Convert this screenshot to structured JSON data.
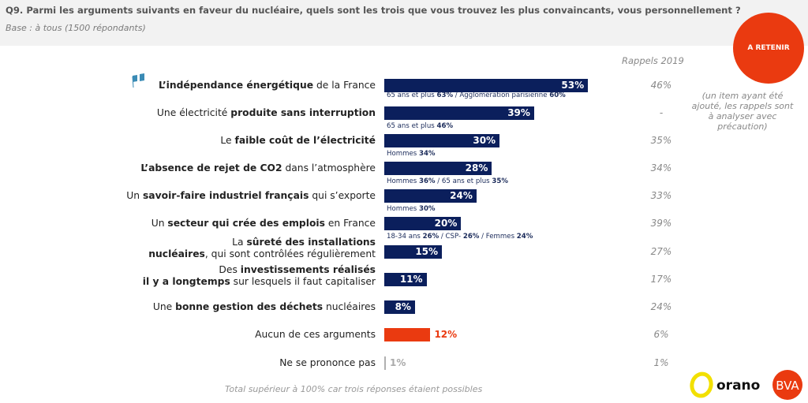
{
  "header": {
    "title": "Q9. Parmi les arguments suivants en faveur du nucléaire, quels sont les trois que vous trouvez les plus convaincants, vous personnellement ?",
    "base": "Base : à tous (1500 répondants)"
  },
  "badge": "A RETENIR",
  "rappels_header": "Rappels 2019",
  "rappels_note": "(un item ayant été ajouté, les rappels sont à analyser avec précaution)",
  "footer": "Total supérieur à 100% car trois réponses étaient possibles",
  "logos": {
    "orano": "orano",
    "bva": "BVA"
  },
  "colors": {
    "navy": "#0b1f5c",
    "red": "#ea3a10",
    "grey": "#b0b0b0"
  },
  "chart_data": {
    "type": "bar",
    "orientation": "horizontal",
    "title": "Q9. Parmi les arguments suivants en faveur du nucléaire, quels sont les trois que vous trouvez les plus convaincants, vous personnellement ?",
    "xlim": [
      0,
      100
    ],
    "unit": "%",
    "rows": [
      {
        "parts": [
          {
            "t": "L’indépendance énergétique",
            "b": true
          },
          {
            "t": " de la France",
            "b": false
          }
        ],
        "value": 53,
        "label": "53%",
        "color": "navy",
        "rappel": "46%",
        "sub": [
          {
            "t": "65 ans et plus ",
            "b": false
          },
          {
            "t": "63%",
            "b": true
          },
          {
            "t": " / Agglomération parisienne ",
            "b": false
          },
          {
            "t": "60%",
            "b": true
          }
        ]
      },
      {
        "parts": [
          {
            "t": "Une électricité ",
            "b": false
          },
          {
            "t": "produite sans interruption",
            "b": true
          }
        ],
        "value": 39,
        "label": "39%",
        "color": "navy",
        "rappel": "-",
        "sub": [
          {
            "t": "65 ans et plus ",
            "b": false
          },
          {
            "t": "46%",
            "b": true
          }
        ]
      },
      {
        "parts": [
          {
            "t": "Le ",
            "b": false
          },
          {
            "t": "faible coût de l’électricité",
            "b": true
          }
        ],
        "value": 30,
        "label": "30%",
        "color": "navy",
        "rappel": "35%",
        "sub": [
          {
            "t": "Hommes ",
            "b": false
          },
          {
            "t": "34%",
            "b": true
          }
        ]
      },
      {
        "parts": [
          {
            "t": "L’absence de rejet de CO2",
            "b": true
          },
          {
            "t": " dans l’atmosphère",
            "b": false
          }
        ],
        "value": 28,
        "label": "28%",
        "color": "navy",
        "rappel": "34%",
        "sub": [
          {
            "t": "Hommes ",
            "b": false
          },
          {
            "t": "36%",
            "b": true
          },
          {
            "t": " / 65 ans et plus ",
            "b": false
          },
          {
            "t": "35%",
            "b": true
          }
        ]
      },
      {
        "parts": [
          {
            "t": "Un ",
            "b": false
          },
          {
            "t": "savoir-faire industriel français",
            "b": true
          },
          {
            "t": " qui s’exporte",
            "b": false
          }
        ],
        "value": 24,
        "label": "24%",
        "color": "navy",
        "rappel": "33%",
        "sub": [
          {
            "t": "Hommes ",
            "b": false
          },
          {
            "t": "30%",
            "b": true
          }
        ]
      },
      {
        "parts": [
          {
            "t": "Un ",
            "b": false
          },
          {
            "t": "secteur qui crée des emplois",
            "b": true
          },
          {
            "t": " en France",
            "b": false
          }
        ],
        "value": 20,
        "label": "20%",
        "color": "navy",
        "rappel": "39%",
        "sub": [
          {
            "t": "18-34 ans ",
            "b": false
          },
          {
            "t": "26%",
            "b": true
          },
          {
            "t": " / CSP- ",
            "b": false
          },
          {
            "t": "26%",
            "b": true
          },
          {
            "t": " / Femmes ",
            "b": false
          },
          {
            "t": "24%",
            "b": true
          }
        ]
      },
      {
        "parts": [
          {
            "t": "La ",
            "b": false
          },
          {
            "t": "sûreté des installations",
            "b": true
          },
          {
            "t": "\n",
            "b": false
          },
          {
            "t": "nucléaires",
            "b": true
          },
          {
            "t": ", qui sont contrôlées régulièrement",
            "b": false
          }
        ],
        "value": 15,
        "label": "15%",
        "color": "navy",
        "rappel": "27%",
        "sub": []
      },
      {
        "parts": [
          {
            "t": "Des ",
            "b": false
          },
          {
            "t": "investissements réalisés",
            "b": true
          },
          {
            "t": "\n",
            "b": false
          },
          {
            "t": "il y a longtemps",
            "b": true
          },
          {
            "t": " sur lesquels il faut capitaliser",
            "b": false
          }
        ],
        "value": 11,
        "label": "11%",
        "color": "navy",
        "rappel": "17%",
        "sub": []
      },
      {
        "parts": [
          {
            "t": "Une ",
            "b": false
          },
          {
            "t": "bonne gestion des déchets",
            "b": true
          },
          {
            "t": " nucléaires",
            "b": false
          }
        ],
        "value": 8,
        "label": "8%",
        "color": "navy",
        "rappel": "24%",
        "sub": []
      },
      {
        "parts": [
          {
            "t": "Aucun de ces arguments",
            "b": false
          }
        ],
        "value": 12,
        "label": "12%",
        "color": "red",
        "rappel": "6%",
        "sub": []
      },
      {
        "parts": [
          {
            "t": "Ne se prononce pas",
            "b": false
          }
        ],
        "value": 1,
        "label": "1%",
        "color": "grey",
        "rappel": "1%",
        "sub": []
      }
    ]
  }
}
